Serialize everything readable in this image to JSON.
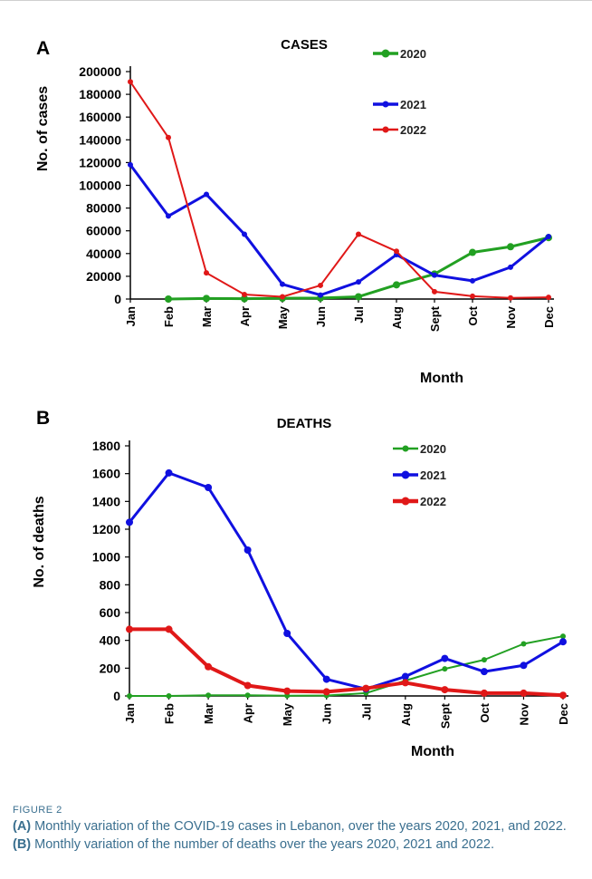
{
  "chart_data": [
    {
      "type": "line",
      "panel": "A",
      "title": "CASES",
      "xlabel": "Month",
      "ylabel": "No. of cases",
      "ylim": [
        0,
        200000
      ],
      "yticks": [
        "0",
        "20000",
        "40000",
        "60000",
        "80000",
        "100000",
        "120000",
        "140000",
        "160000",
        "180000",
        "200000"
      ],
      "categories": [
        "Jan",
        "Feb",
        "Mar",
        "Apr",
        "May",
        "Jun",
        "Jul",
        "Aug",
        "Sept",
        "Oct",
        "Nov",
        "Dec"
      ],
      "legend_position": "top-right",
      "grid": false,
      "series": [
        {
          "name": "2020",
          "color": "#22a022",
          "start_index": 1,
          "values": [
            null,
            0,
            500,
            300,
            700,
            900,
            2000,
            12500,
            22000,
            41000,
            46000,
            54000
          ]
        },
        {
          "name": "2021",
          "color": "#1010e0",
          "values": [
            118000,
            73000,
            92000,
            57000,
            13000,
            3500,
            15000,
            39000,
            21000,
            16000,
            28000,
            55000
          ]
        },
        {
          "name": "2022",
          "color": "#e01818",
          "values": [
            191000,
            142000,
            23000,
            4000,
            2000,
            12000,
            57000,
            42000,
            6500,
            2500,
            1000,
            1500
          ]
        }
      ]
    },
    {
      "type": "line",
      "panel": "B",
      "title": "DEATHS",
      "xlabel": "Month",
      "ylabel": "No. of deaths",
      "ylim": [
        0,
        1800
      ],
      "yticks": [
        "0",
        "200",
        "400",
        "600",
        "800",
        "1000",
        "1200",
        "1400",
        "1600",
        "1800"
      ],
      "categories": [
        "Jan",
        "Feb",
        "Mar",
        "Apr",
        "May",
        "Jun",
        "Jul",
        "Aug",
        "Sept",
        "Oct",
        "Nov",
        "Dec"
      ],
      "legend_position": "top-right",
      "grid": false,
      "series": [
        {
          "name": "2020",
          "color": "#22a022",
          "values": [
            0,
            0,
            5,
            5,
            2,
            3,
            20,
            110,
            195,
            260,
            375,
            430
          ]
        },
        {
          "name": "2021",
          "color": "#1010e0",
          "values": [
            1250,
            1605,
            1500,
            1050,
            450,
            120,
            50,
            140,
            270,
            175,
            220,
            390
          ]
        },
        {
          "name": "2022",
          "color": "#e01818",
          "values": [
            480,
            480,
            210,
            75,
            35,
            30,
            55,
            95,
            45,
            20,
            20,
            5
          ]
        }
      ]
    }
  ],
  "caption": {
    "label": "FIGURE 2",
    "part_a_tag": "(A)",
    "part_a_text": " Monthly variation of the COVID-19 cases in Lebanon, over the years 2020, 2021, and 2022. ",
    "part_b_tag": "(B)",
    "part_b_text": " Monthly variation of the number of deaths over the years 2020, 2021 and 2022."
  }
}
